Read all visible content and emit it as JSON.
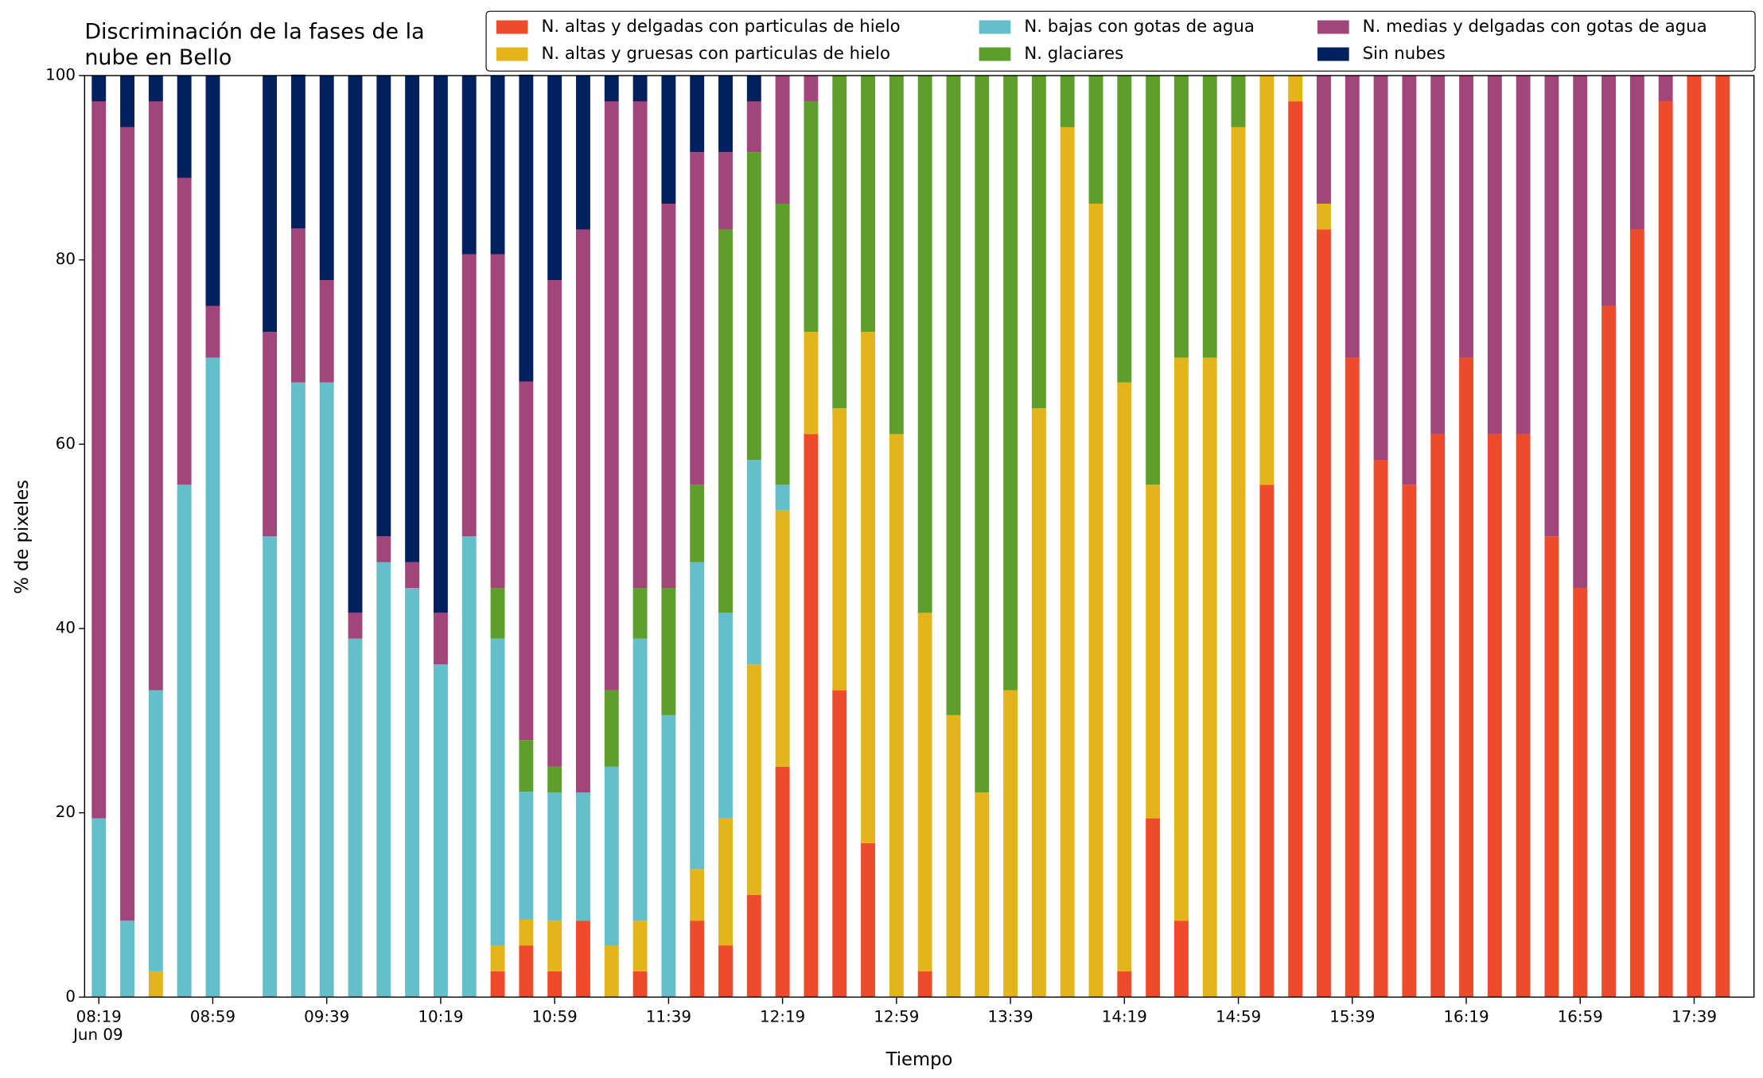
{
  "chart_data": {
    "type": "stacked_bar",
    "title": [
      "Discriminación de la fases de la",
      "nube en Bello"
    ],
    "xlabel": "Tiempo",
    "ylabel": "% de pixeles",
    "xtick_date": "Jun 09",
    "xlim": [
      "08:14",
      "18:00"
    ],
    "xticks": [
      "08:19",
      "08:59",
      "09:39",
      "10:19",
      "10:59",
      "11:39",
      "12:19",
      "12:59",
      "13:39",
      "14:19",
      "14:59",
      "15:39",
      "16:19",
      "16:59",
      "17:39"
    ],
    "ylim": [
      0,
      100
    ],
    "yticks": [
      0,
      20,
      40,
      60,
      80,
      100
    ],
    "legend": "top-right",
    "x": [
      "08:19",
      "08:29",
      "08:39",
      "08:49",
      "08:59",
      "09:19",
      "09:29",
      "09:39",
      "09:49",
      "09:59",
      "10:09",
      "10:19",
      "10:29",
      "10:39",
      "10:49",
      "10:59",
      "11:09",
      "11:19",
      "11:29",
      "11:39",
      "11:49",
      "11:59",
      "12:09",
      "12:19",
      "12:29",
      "12:39",
      "12:49",
      "12:59",
      "13:09",
      "13:19",
      "13:29",
      "13:39",
      "13:49",
      "13:59",
      "14:09",
      "14:19",
      "14:29",
      "14:39",
      "14:49",
      "14:59",
      "15:09",
      "15:19",
      "15:29",
      "15:39",
      "15:49",
      "15:59",
      "16:09",
      "16:19",
      "16:29",
      "16:39",
      "16:49",
      "16:59",
      "17:09",
      "17:19",
      "17:29",
      "17:39",
      "17:49"
    ],
    "series": [
      {
        "name": "N. altas y delgadas con particulas de hielo",
        "color": "#ee4b2b",
        "values": [
          0,
          0,
          0,
          0,
          0,
          0,
          0,
          0,
          0,
          0,
          0,
          0,
          0,
          2.8,
          5.6,
          2.8,
          8.3,
          0,
          2.8,
          0,
          8.3,
          5.6,
          11.1,
          25,
          61.1,
          33.3,
          16.7,
          0,
          2.8,
          0,
          0,
          0,
          0,
          0,
          0,
          2.8,
          19.4,
          8.3,
          0,
          0,
          55.6,
          97.2,
          83.3,
          69.4,
          58.3,
          55.6,
          61.1,
          69.4,
          61.1,
          61.1,
          50,
          44.4,
          75,
          83.3,
          97.2,
          100,
          100
        ]
      },
      {
        "name": "N. altas y gruesas con particulas de hielo",
        "color": "#e3b51a",
        "values": [
          0,
          0,
          2.8,
          0,
          0,
          0,
          0,
          0,
          0,
          0,
          0,
          0,
          0,
          2.8,
          2.8,
          5.5,
          0,
          5.6,
          5.5,
          0,
          5.6,
          13.8,
          25,
          27.8,
          11.1,
          30.6,
          55.5,
          61.1,
          38.9,
          30.6,
          22.2,
          33.3,
          63.9,
          94.4,
          86.1,
          63.9,
          36.2,
          61.1,
          69.4,
          94.4,
          44.4,
          2.8,
          2.8,
          0,
          0,
          0,
          0,
          0,
          0,
          0,
          0,
          0,
          0,
          0,
          0,
          0,
          0
        ]
      },
      {
        "name": "N. bajas con gotas de agua",
        "color": "#64bfcb",
        "values": [
          19.4,
          8.3,
          30.5,
          55.6,
          69.4,
          50,
          66.7,
          66.7,
          38.9,
          47.2,
          44.4,
          36.1,
          50,
          33.3,
          13.9,
          13.9,
          13.9,
          19.4,
          30.6,
          30.6,
          33.3,
          22.3,
          22.2,
          2.8,
          0,
          0,
          0,
          0,
          0,
          0,
          0,
          0,
          0,
          0,
          0,
          0,
          0,
          0,
          0,
          0,
          0,
          0,
          0,
          0,
          0,
          0,
          0,
          0,
          0,
          0,
          0,
          0,
          0,
          0,
          0,
          0,
          0
        ]
      },
      {
        "name": "N. glaciares",
        "color": "#5d9e2c",
        "values": [
          0,
          0,
          0,
          0,
          0,
          0,
          0,
          0,
          0,
          0,
          0,
          0,
          0,
          5.5,
          5.6,
          2.8,
          0,
          8.3,
          5.5,
          13.8,
          8.4,
          41.6,
          33.4,
          30.5,
          25,
          36.1,
          27.8,
          38.9,
          58.3,
          69.4,
          77.8,
          66.7,
          36.1,
          5.6,
          13.9,
          33.3,
          44.4,
          30.6,
          30.6,
          5.6,
          0,
          0,
          0,
          0,
          0,
          0,
          0,
          0,
          0,
          0,
          0,
          0,
          0,
          0,
          0,
          0,
          0
        ]
      },
      {
        "name": "N. medias y delgadas con gotas de agua",
        "color": "#a2457b",
        "values": [
          77.8,
          86.1,
          63.9,
          33.3,
          5.6,
          22.2,
          16.7,
          11.1,
          2.8,
          2.8,
          2.8,
          5.6,
          30.6,
          36.2,
          38.9,
          52.8,
          61.1,
          63.9,
          52.8,
          41.7,
          36.1,
          8.4,
          5.5,
          13.9,
          2.8,
          0,
          0,
          0,
          0,
          0,
          0,
          0,
          0,
          0,
          0,
          0,
          0,
          0,
          0,
          0,
          0,
          0,
          13.9,
          30.6,
          41.7,
          44.4,
          38.9,
          30.6,
          38.9,
          38.9,
          50,
          55.6,
          25,
          16.7,
          2.8,
          0,
          0
        ]
      },
      {
        "name": "Sin nubes",
        "color": "#03205f",
        "values": [
          2.8,
          5.6,
          2.8,
          11.1,
          25,
          27.8,
          16.7,
          22.2,
          58.3,
          50,
          52.8,
          58.3,
          19.4,
          19.4,
          33.3,
          22.2,
          16.7,
          2.8,
          2.8,
          13.9,
          8.3,
          8.3,
          2.8,
          0,
          0,
          0,
          0,
          0,
          0,
          0,
          0,
          0,
          0,
          0,
          0,
          0,
          0,
          0,
          0,
          0,
          0,
          0,
          0,
          0,
          0,
          0,
          0,
          0,
          0,
          0,
          0,
          0,
          0,
          0,
          0,
          0,
          0
        ]
      }
    ]
  }
}
